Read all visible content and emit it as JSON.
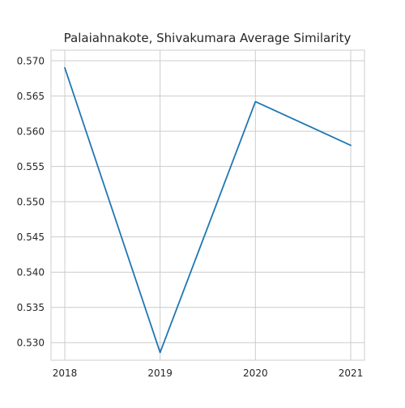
{
  "chart_data": {
    "type": "line",
    "title": "Palaiahnakote, Shivakumara Average Similarity",
    "xlabel": "",
    "ylabel": "",
    "x": [
      "2018",
      "2019",
      "2020",
      "2021"
    ],
    "series": [
      {
        "values": [
          0.569,
          0.5286,
          0.5642,
          0.558
        ]
      }
    ],
    "ylim": [
      0.5275,
      0.5715
    ],
    "y_ticks": [
      "0.530",
      "0.535",
      "0.540",
      "0.545",
      "0.550",
      "0.555",
      "0.560",
      "0.565",
      "0.570"
    ],
    "grid": true,
    "line_color": "#1f77b4"
  }
}
